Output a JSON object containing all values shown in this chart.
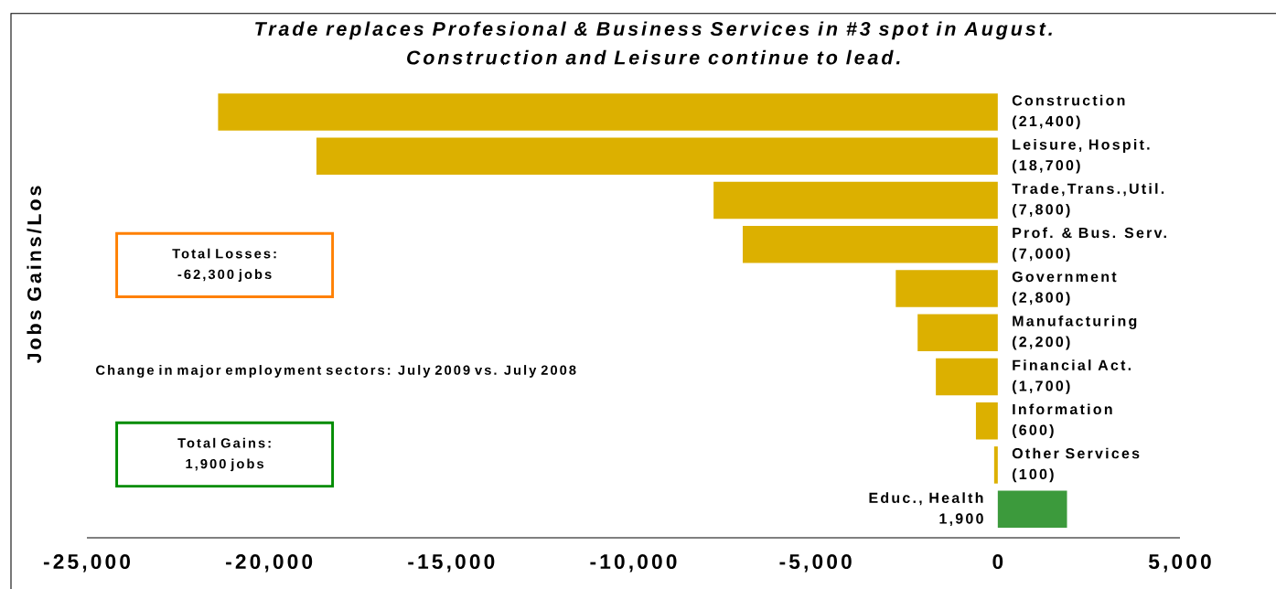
{
  "chart_data": {
    "type": "bar",
    "orientation": "horizontal",
    "title": "Trade replaces Profesional & Business Services in #3 spot in August.",
    "subtitle": "Construction and Leisure continue to lead.",
    "ylabel": "Jobs Gains/Los",
    "categories": [
      "Construction",
      "Leisure, Hospit.",
      "Trade,Trans.,Util.",
      "Prof. & Bus. Serv.",
      "Government",
      "Manufacturing",
      "Financial Act.",
      "Information",
      "Other Services",
      "Educ., Health"
    ],
    "values": [
      -21400,
      -18700,
      -7800,
      -7000,
      -2800,
      -2200,
      -1700,
      -600,
      -100,
      1900
    ],
    "value_labels": [
      "(21,400)",
      "(18,700)",
      "(7,800)",
      "(7,000)",
      "(2,800)",
      "(2,200)",
      "(1,700)",
      "(600)",
      "(100)",
      "1,900"
    ],
    "colors": [
      "#dcb000",
      "#dcb000",
      "#dcb000",
      "#dcb000",
      "#dcb000",
      "#dcb000",
      "#dcb000",
      "#dcb000",
      "#dcb000",
      "#3c9a3c"
    ],
    "xlim": [
      -25000,
      5000
    ],
    "xticks": [
      {
        "value": -25000,
        "label": "-25,000"
      },
      {
        "value": -20000,
        "label": "-20,000"
      },
      {
        "value": -15000,
        "label": "-15,000"
      },
      {
        "value": -10000,
        "label": "-10,000"
      },
      {
        "value": -5000,
        "label": "-5,000"
      },
      0,
      {
        "value": 5000,
        "label": "5,000"
      }
    ],
    "annotations": [
      "Total Losses: -62,300 jobs",
      "Change in major employment sectors: July 2009 vs. July 2008",
      "Total Gains: 1,900 jobs"
    ]
  }
}
